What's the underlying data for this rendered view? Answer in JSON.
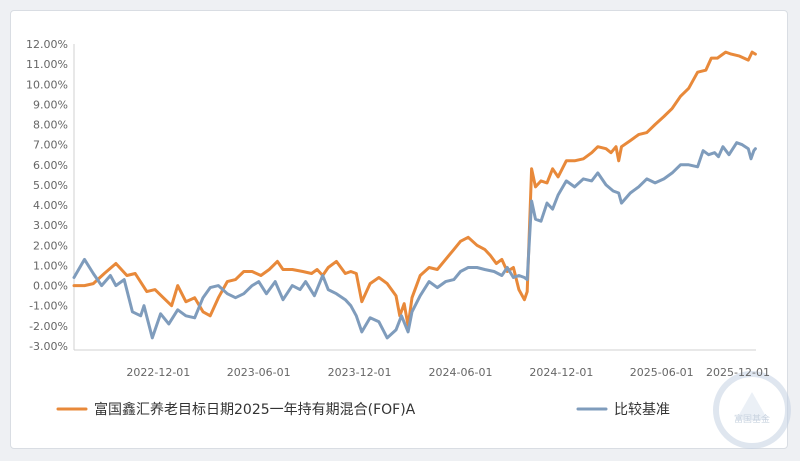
{
  "chart_data": {
    "type": "line",
    "title": "",
    "xlabel": "",
    "ylabel": "",
    "ylim": [
      -3,
      12
    ],
    "y_ticks": [
      "12.00%",
      "11.00%",
      "10.00%",
      "9.00%",
      "8.00%",
      "7.00%",
      "6.00%",
      "5.00%",
      "4.00%",
      "3.00%",
      "2.00%",
      "1.00%",
      "0.00%",
      "-1.00%",
      "-2.00%",
      "-3.00%"
    ],
    "x_ticks": [
      "2022-12-01",
      "2023-06-01",
      "2023-12-01",
      "2024-06-01",
      "2024-12-01",
      "2025-06-01",
      "2025-12-01"
    ],
    "grid": false,
    "legend_position": "bottom",
    "series": [
      {
        "name": "富国鑫汇养老目标日期2025一年持有期混合(FOF)A",
        "color": "#e8893a",
        "points": [
          [
            "2022-07-01",
            0.0
          ],
          [
            "2022-07-20",
            0.0
          ],
          [
            "2022-08-05",
            0.1
          ],
          [
            "2022-08-25",
            0.6
          ],
          [
            "2022-09-15",
            1.1
          ],
          [
            "2022-10-05",
            0.5
          ],
          [
            "2022-10-20",
            0.6
          ],
          [
            "2022-11-10",
            -0.3
          ],
          [
            "2022-11-25",
            -0.2
          ],
          [
            "2022-12-10",
            -0.6
          ],
          [
            "2022-12-25",
            -1.0
          ],
          [
            "2023-01-05",
            0.0
          ],
          [
            "2023-01-20",
            -0.8
          ],
          [
            "2023-02-05",
            -0.6
          ],
          [
            "2023-02-20",
            -1.3
          ],
          [
            "2023-03-05",
            -1.5
          ],
          [
            "2023-03-20",
            -0.6
          ],
          [
            "2023-04-05",
            0.2
          ],
          [
            "2023-04-20",
            0.3
          ],
          [
            "2023-05-05",
            0.7
          ],
          [
            "2023-05-20",
            0.7
          ],
          [
            "2023-06-05",
            0.5
          ],
          [
            "2023-06-20",
            0.8
          ],
          [
            "2023-07-05",
            1.2
          ],
          [
            "2023-07-15",
            0.8
          ],
          [
            "2023-08-01",
            0.8
          ],
          [
            "2023-08-20",
            0.7
          ],
          [
            "2023-09-05",
            0.6
          ],
          [
            "2023-09-15",
            0.8
          ],
          [
            "2023-09-25",
            0.5
          ],
          [
            "2023-10-05",
            0.9
          ],
          [
            "2023-10-20",
            1.2
          ],
          [
            "2023-11-05",
            0.6
          ],
          [
            "2023-11-15",
            0.7
          ],
          [
            "2023-11-25",
            0.6
          ],
          [
            "2023-12-05",
            -0.8
          ],
          [
            "2023-12-20",
            0.1
          ],
          [
            "2024-01-05",
            0.4
          ],
          [
            "2024-01-20",
            0.1
          ],
          [
            "2024-02-05",
            -0.5
          ],
          [
            "2024-02-12",
            -1.5
          ],
          [
            "2024-02-20",
            -0.9
          ],
          [
            "2024-02-27",
            -2.0
          ],
          [
            "2024-03-05",
            -0.6
          ],
          [
            "2024-03-20",
            0.5
          ],
          [
            "2024-04-05",
            0.9
          ],
          [
            "2024-04-20",
            0.8
          ],
          [
            "2024-05-05",
            1.3
          ],
          [
            "2024-05-20",
            1.8
          ],
          [
            "2024-06-01",
            2.2
          ],
          [
            "2024-06-15",
            2.4
          ],
          [
            "2024-07-01",
            2.0
          ],
          [
            "2024-07-15",
            1.8
          ],
          [
            "2024-07-25",
            1.5
          ],
          [
            "2024-08-05",
            1.1
          ],
          [
            "2024-08-15",
            1.3
          ],
          [
            "2024-08-25",
            0.7
          ],
          [
            "2024-09-05",
            0.9
          ],
          [
            "2024-09-15",
            -0.2
          ],
          [
            "2024-09-25",
            -0.7
          ],
          [
            "2024-09-30",
            -0.3
          ],
          [
            "2024-10-08",
            5.8
          ],
          [
            "2024-10-15",
            4.9
          ],
          [
            "2024-10-25",
            5.2
          ],
          [
            "2024-11-05",
            5.1
          ],
          [
            "2024-11-15",
            5.8
          ],
          [
            "2024-11-25",
            5.4
          ],
          [
            "2024-12-10",
            6.2
          ],
          [
            "2024-12-25",
            6.2
          ],
          [
            "2025-01-10",
            6.3
          ],
          [
            "2025-01-25",
            6.6
          ],
          [
            "2025-02-05",
            6.9
          ],
          [
            "2025-02-20",
            6.8
          ],
          [
            "2025-03-01",
            6.6
          ],
          [
            "2025-03-10",
            6.9
          ],
          [
            "2025-03-15",
            6.2
          ],
          [
            "2025-03-20",
            6.9
          ],
          [
            "2025-04-05",
            7.2
          ],
          [
            "2025-04-20",
            7.5
          ],
          [
            "2025-05-05",
            7.6
          ],
          [
            "2025-05-20",
            8.0
          ],
          [
            "2025-06-05",
            8.4
          ],
          [
            "2025-06-20",
            8.8
          ],
          [
            "2025-07-05",
            9.4
          ],
          [
            "2025-07-20",
            9.8
          ],
          [
            "2025-08-05",
            10.6
          ],
          [
            "2025-08-20",
            10.7
          ],
          [
            "2025-08-30",
            11.3
          ],
          [
            "2025-09-10",
            11.3
          ],
          [
            "2025-09-25",
            11.6
          ],
          [
            "2025-10-05",
            11.5
          ],
          [
            "2025-10-20",
            11.4
          ],
          [
            "2025-10-28",
            11.3
          ],
          [
            "2025-11-05",
            11.2
          ],
          [
            "2025-11-12",
            11.6
          ],
          [
            "2025-11-18",
            11.5
          ]
        ]
      },
      {
        "name": "比较基准",
        "color": "#7f9cbc",
        "points": [
          [
            "2022-07-01",
            0.4
          ],
          [
            "2022-07-20",
            1.3
          ],
          [
            "2022-08-05",
            0.6
          ],
          [
            "2022-08-20",
            0.0
          ],
          [
            "2022-09-05",
            0.5
          ],
          [
            "2022-09-15",
            0.0
          ],
          [
            "2022-09-30",
            0.3
          ],
          [
            "2022-10-15",
            -1.3
          ],
          [
            "2022-10-30",
            -1.5
          ],
          [
            "2022-11-05",
            -1.0
          ],
          [
            "2022-11-20",
            -2.6
          ],
          [
            "2022-12-05",
            -1.4
          ],
          [
            "2022-12-20",
            -1.9
          ],
          [
            "2023-01-05",
            -1.2
          ],
          [
            "2023-01-20",
            -1.5
          ],
          [
            "2023-02-05",
            -1.6
          ],
          [
            "2023-02-20",
            -0.6
          ],
          [
            "2023-03-05",
            -0.1
          ],
          [
            "2023-03-20",
            0.0
          ],
          [
            "2023-04-05",
            -0.4
          ],
          [
            "2023-04-20",
            -0.6
          ],
          [
            "2023-05-05",
            -0.4
          ],
          [
            "2023-05-20",
            0.0
          ],
          [
            "2023-06-01",
            0.2
          ],
          [
            "2023-06-15",
            -0.4
          ],
          [
            "2023-07-01",
            0.2
          ],
          [
            "2023-07-15",
            -0.7
          ],
          [
            "2023-08-01",
            0.0
          ],
          [
            "2023-08-15",
            -0.2
          ],
          [
            "2023-08-25",
            0.2
          ],
          [
            "2023-09-10",
            -0.5
          ],
          [
            "2023-09-25",
            0.5
          ],
          [
            "2023-10-05",
            -0.2
          ],
          [
            "2023-10-20",
            -0.4
          ],
          [
            "2023-11-05",
            -0.7
          ],
          [
            "2023-11-15",
            -1.0
          ],
          [
            "2023-11-25",
            -1.5
          ],
          [
            "2023-12-05",
            -2.3
          ],
          [
            "2023-12-20",
            -1.6
          ],
          [
            "2024-01-05",
            -1.8
          ],
          [
            "2024-01-20",
            -2.6
          ],
          [
            "2024-02-05",
            -2.2
          ],
          [
            "2024-02-15",
            -1.5
          ],
          [
            "2024-02-27",
            -2.3
          ],
          [
            "2024-03-05",
            -1.3
          ],
          [
            "2024-03-20",
            -0.5
          ],
          [
            "2024-04-05",
            0.2
          ],
          [
            "2024-04-20",
            -0.1
          ],
          [
            "2024-05-05",
            0.2
          ],
          [
            "2024-05-20",
            0.3
          ],
          [
            "2024-06-01",
            0.7
          ],
          [
            "2024-06-15",
            0.9
          ],
          [
            "2024-07-01",
            0.9
          ],
          [
            "2024-07-15",
            0.8
          ],
          [
            "2024-08-01",
            0.7
          ],
          [
            "2024-08-15",
            0.5
          ],
          [
            "2024-08-25",
            0.9
          ],
          [
            "2024-09-05",
            0.4
          ],
          [
            "2024-09-15",
            0.5
          ],
          [
            "2024-09-25",
            0.4
          ],
          [
            "2024-09-30",
            0.3
          ],
          [
            "2024-10-08",
            4.2
          ],
          [
            "2024-10-15",
            3.3
          ],
          [
            "2024-10-25",
            3.2
          ],
          [
            "2024-11-05",
            4.1
          ],
          [
            "2024-11-15",
            3.8
          ],
          [
            "2024-11-25",
            4.5
          ],
          [
            "2024-12-10",
            5.2
          ],
          [
            "2024-12-25",
            4.9
          ],
          [
            "2025-01-10",
            5.3
          ],
          [
            "2025-01-25",
            5.2
          ],
          [
            "2025-02-05",
            5.6
          ],
          [
            "2025-02-20",
            5.0
          ],
          [
            "2025-03-05",
            4.7
          ],
          [
            "2025-03-15",
            4.6
          ],
          [
            "2025-03-20",
            4.1
          ],
          [
            "2025-04-05",
            4.6
          ],
          [
            "2025-04-20",
            4.9
          ],
          [
            "2025-05-05",
            5.3
          ],
          [
            "2025-05-20",
            5.1
          ],
          [
            "2025-06-05",
            5.3
          ],
          [
            "2025-06-20",
            5.6
          ],
          [
            "2025-07-05",
            6.0
          ],
          [
            "2025-07-20",
            6.0
          ],
          [
            "2025-08-05",
            5.9
          ],
          [
            "2025-08-15",
            6.7
          ],
          [
            "2025-08-25",
            6.5
          ],
          [
            "2025-09-05",
            6.6
          ],
          [
            "2025-09-12",
            6.4
          ],
          [
            "2025-09-20",
            6.9
          ],
          [
            "2025-10-01",
            6.5
          ],
          [
            "2025-10-15",
            7.1
          ],
          [
            "2025-10-25",
            7.0
          ],
          [
            "2025-11-05",
            6.8
          ],
          [
            "2025-11-10",
            6.3
          ],
          [
            "2025-11-15",
            6.7
          ],
          [
            "2025-11-18",
            6.8
          ]
        ]
      }
    ]
  },
  "watermark": {
    "text": "富国基金",
    "color": "#c5d2e3"
  }
}
